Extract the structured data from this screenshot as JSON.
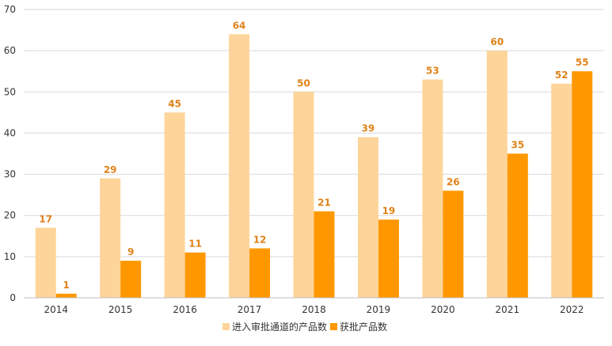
{
  "chart_data": {
    "type": "bar",
    "categories": [
      "2014",
      "2015",
      "2016",
      "2017",
      "2018",
      "2019",
      "2020",
      "2021",
      "2022"
    ],
    "series": [
      {
        "name": "进入审批通道的产品数",
        "values": [
          17,
          29,
          45,
          64,
          50,
          39,
          53,
          60,
          52
        ],
        "color": "#FDD59A"
      },
      {
        "name": "获批产品数",
        "values": [
          1,
          9,
          11,
          12,
          21,
          19,
          26,
          35,
          55
        ],
        "color": "#FF9800"
      }
    ],
    "ylim": [
      0,
      70
    ],
    "yticks": [
      "0",
      "10",
      "20",
      "30",
      "40",
      "50",
      "60",
      "70"
    ],
    "grid": true,
    "legend_position": "bottom",
    "data_label_color": "#E0821A",
    "axis_color": "#BFBFBF",
    "grid_color": "#D9D9D9"
  }
}
